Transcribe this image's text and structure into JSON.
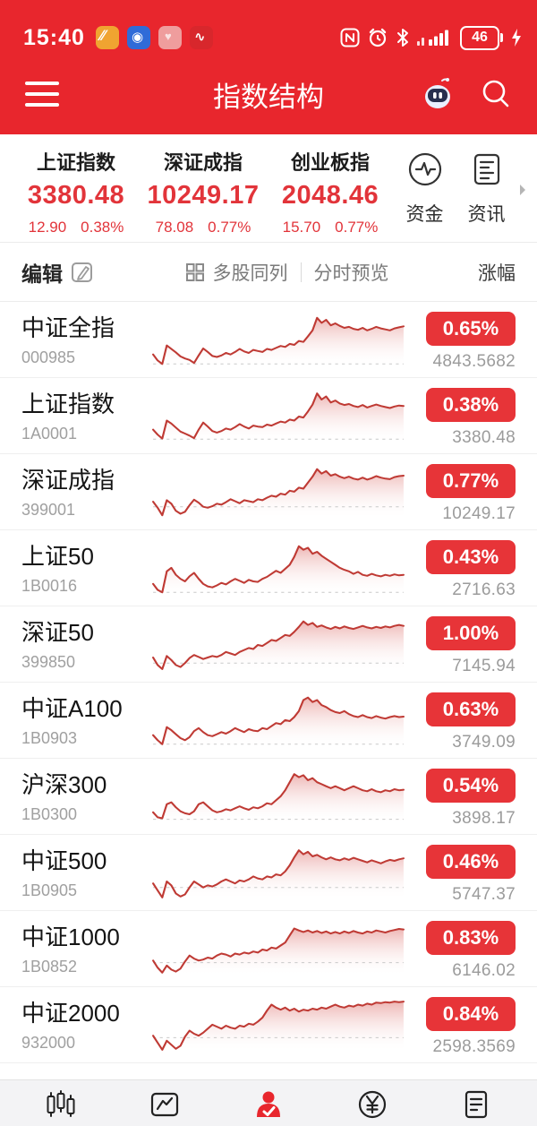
{
  "colors": {
    "header_red": "#e8262d",
    "price_red": "#e2343a",
    "badge_red": "#e73438",
    "line_red": "#bf3a34"
  },
  "status_bar": {
    "time": "15:40",
    "battery": "46"
  },
  "header": {
    "title": "指数结构"
  },
  "summary": {
    "items": [
      {
        "name": "上证指数",
        "value": "3380.48",
        "change": "12.90",
        "change_pct": "0.38%"
      },
      {
        "name": "深证成指",
        "value": "10249.17",
        "change": "78.08",
        "change_pct": "0.77%"
      },
      {
        "name": "创业板指",
        "value": "2048.46",
        "change": "15.70",
        "change_pct": "0.77%"
      }
    ],
    "fund_label": "资金",
    "news_label": "资讯"
  },
  "toolbar": {
    "edit_label": "编辑",
    "multi_label": "多股同列",
    "preview_label": "分时预览",
    "sort_label": "涨幅"
  },
  "chart_data": {
    "type": "line",
    "note": "intraday sparklines, values are % of chart height above bottom, base is dashed prev-close line"
  },
  "indices": [
    {
      "name": "中证全指",
      "code": "000985",
      "change_pct": "0.65%",
      "value": "4843.5682",
      "base": 3,
      "spark": [
        22,
        10,
        3,
        40,
        33,
        26,
        18,
        14,
        11,
        5,
        20,
        34,
        27,
        19,
        17,
        20,
        25,
        22,
        27,
        33,
        28,
        25,
        31,
        29,
        27,
        33,
        31,
        35,
        39,
        37,
        43,
        41,
        49,
        47,
        58,
        70,
        95,
        85,
        91,
        80,
        84,
        79,
        75,
        77,
        73,
        71,
        75,
        70,
        73,
        77,
        74,
        72,
        70,
        74,
        76,
        78
      ]
    },
    {
      "name": "上证指数",
      "code": "1A0001",
      "change_pct": "0.38%",
      "value": "3380.48",
      "base": 5,
      "spark": [
        24,
        14,
        6,
        42,
        36,
        28,
        20,
        16,
        12,
        7,
        24,
        38,
        30,
        21,
        18,
        21,
        26,
        24,
        29,
        35,
        30,
        26,
        32,
        30,
        29,
        34,
        32,
        36,
        40,
        38,
        44,
        42,
        50,
        48,
        60,
        74,
        96,
        84,
        90,
        78,
        82,
        76,
        73,
        75,
        71,
        69,
        73,
        68,
        71,
        74,
        71,
        69,
        67,
        70,
        72,
        71
      ]
    },
    {
      "name": "深证成指",
      "code": "399001",
      "change_pct": "0.77%",
      "value": "10249.17",
      "base": 22,
      "spark": [
        32,
        20,
        5,
        35,
        28,
        14,
        8,
        12,
        25,
        36,
        30,
        22,
        20,
        23,
        28,
        26,
        31,
        37,
        33,
        29,
        35,
        33,
        31,
        37,
        35,
        40,
        44,
        42,
        48,
        46,
        54,
        52,
        60,
        58,
        70,
        82,
        97,
        88,
        93,
        84,
        87,
        82,
        79,
        82,
        78,
        76,
        80,
        76,
        79,
        83,
        80,
        78,
        77,
        81,
        83,
        84
      ]
    },
    {
      "name": "上证50",
      "code": "1B0016",
      "change_pct": "0.43%",
      "value": "2716.63",
      "base": 3,
      "spark": [
        20,
        8,
        3,
        45,
        52,
        38,
        30,
        25,
        35,
        42,
        30,
        20,
        15,
        13,
        17,
        22,
        19,
        25,
        30,
        26,
        22,
        28,
        25,
        24,
        30,
        34,
        40,
        46,
        42,
        50,
        58,
        74,
        95,
        88,
        92,
        80,
        84,
        76,
        70,
        64,
        58,
        52,
        48,
        45,
        40,
        44,
        38,
        36,
        40,
        37,
        35,
        38,
        36,
        39,
        37,
        38
      ]
    },
    {
      "name": "深证50",
      "code": "399850",
      "change_pct": "1.00%",
      "value": "7145.94",
      "base": 14,
      "spark": [
        25,
        10,
        2,
        28,
        20,
        10,
        6,
        14,
        24,
        30,
        26,
        22,
        25,
        28,
        26,
        30,
        36,
        33,
        30,
        36,
        40,
        44,
        42,
        50,
        48,
        54,
        60,
        58,
        64,
        70,
        68,
        76,
        86,
        97,
        90,
        94,
        86,
        89,
        85,
        82,
        86,
        83,
        87,
        84,
        82,
        85,
        88,
        85,
        83,
        86,
        84,
        87,
        85,
        88,
        90,
        88
      ]
    },
    {
      "name": "中证A100",
      "code": "1B0903",
      "change_pct": "0.63%",
      "value": "3749.09",
      "base": 4,
      "spark": [
        22,
        12,
        4,
        38,
        32,
        24,
        16,
        12,
        18,
        30,
        36,
        28,
        22,
        20,
        24,
        28,
        25,
        30,
        36,
        32,
        28,
        34,
        31,
        30,
        36,
        34,
        40,
        46,
        44,
        52,
        50,
        58,
        70,
        92,
        97,
        88,
        92,
        82,
        78,
        72,
        68,
        66,
        70,
        64,
        60,
        58,
        62,
        58,
        56,
        60,
        57,
        55,
        58,
        60,
        58,
        59
      ]
    },
    {
      "name": "沪深300",
      "code": "1B0300",
      "change_pct": "0.54%",
      "value": "3898.17",
      "base": 6,
      "spark": [
        20,
        10,
        8,
        36,
        40,
        30,
        22,
        18,
        16,
        22,
        36,
        40,
        32,
        24,
        20,
        22,
        26,
        24,
        28,
        32,
        28,
        25,
        30,
        28,
        32,
        38,
        36,
        44,
        52,
        64,
        80,
        96,
        90,
        94,
        84,
        88,
        80,
        76,
        72,
        68,
        72,
        68,
        64,
        68,
        72,
        68,
        64,
        62,
        66,
        62,
        60,
        64,
        62,
        66,
        64,
        65
      ]
    },
    {
      "name": "中证500",
      "code": "1B0905",
      "change_pct": "0.46%",
      "value": "5747.37",
      "base": 22,
      "spark": [
        30,
        16,
        2,
        34,
        26,
        10,
        4,
        8,
        22,
        34,
        28,
        22,
        26,
        24,
        28,
        34,
        38,
        34,
        30,
        36,
        34,
        38,
        44,
        40,
        38,
        44,
        42,
        48,
        46,
        54,
        66,
        82,
        96,
        88,
        93,
        84,
        87,
        82,
        78,
        82,
        78,
        76,
        80,
        77,
        81,
        78,
        75,
        72,
        76,
        73,
        70,
        74,
        77,
        75,
        78,
        80
      ]
    },
    {
      "name": "中证1000",
      "code": "1B0852",
      "change_pct": "0.83%",
      "value": "6146.02",
      "base": 24,
      "spark": [
        28,
        14,
        4,
        18,
        10,
        6,
        12,
        26,
        38,
        32,
        28,
        30,
        34,
        32,
        38,
        42,
        40,
        36,
        42,
        40,
        44,
        42,
        46,
        44,
        50,
        48,
        54,
        52,
        58,
        64,
        78,
        92,
        88,
        85,
        88,
        84,
        87,
        83,
        86,
        82,
        85,
        82,
        86,
        83,
        87,
        84,
        82,
        86,
        84,
        88,
        86,
        84,
        87,
        89,
        91,
        90
      ]
    },
    {
      "name": "中证2000",
      "code": "932000",
      "change_pct": "0.84%",
      "value": "2598.3569",
      "base": 26,
      "spark": [
        30,
        16,
        2,
        20,
        12,
        4,
        10,
        28,
        40,
        34,
        30,
        36,
        44,
        52,
        48,
        44,
        50,
        46,
        44,
        50,
        48,
        54,
        52,
        58,
        66,
        80,
        92,
        86,
        82,
        86,
        80,
        84,
        78,
        82,
        80,
        84,
        82,
        86,
        84,
        88,
        92,
        88,
        86,
        90,
        88,
        92,
        90,
        94,
        92,
        96,
        95,
        97,
        96,
        98,
        97,
        98
      ]
    }
  ],
  "nav": {
    "items": [
      "candlestick-chart",
      "trend-chart",
      "profile-active",
      "trade-yuan",
      "news-list"
    ]
  }
}
